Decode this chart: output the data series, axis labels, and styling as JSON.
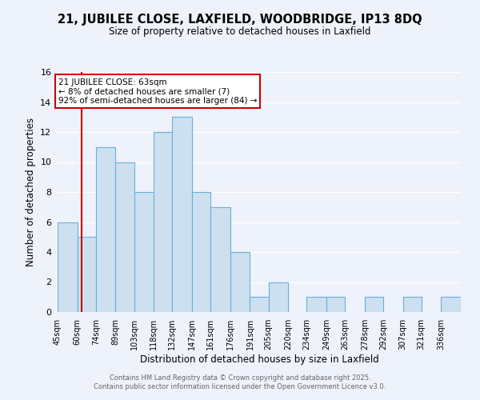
{
  "title": "21, JUBILEE CLOSE, LAXFIELD, WOODBRIDGE, IP13 8DQ",
  "subtitle": "Size of property relative to detached houses in Laxfield",
  "xlabel": "Distribution of detached houses by size in Laxfield",
  "ylabel": "Number of detached properties",
  "bin_labels": [
    "45sqm",
    "60sqm",
    "74sqm",
    "89sqm",
    "103sqm",
    "118sqm",
    "132sqm",
    "147sqm",
    "161sqm",
    "176sqm",
    "191sqm",
    "205sqm",
    "220sqm",
    "234sqm",
    "249sqm",
    "263sqm",
    "278sqm",
    "292sqm",
    "307sqm",
    "321sqm",
    "336sqm"
  ],
  "bin_edges": [
    45,
    60,
    74,
    89,
    103,
    118,
    132,
    147,
    161,
    176,
    191,
    205,
    220,
    234,
    249,
    263,
    278,
    292,
    307,
    321,
    336,
    351
  ],
  "bar_heights": [
    6,
    5,
    11,
    10,
    8,
    12,
    13,
    8,
    7,
    4,
    1,
    2,
    0,
    1,
    1,
    0,
    1,
    0,
    1,
    0,
    1
  ],
  "bar_color": "#cde0f0",
  "bar_edge_color": "#6aaed6",
  "red_line_x": 63,
  "annotation_line1": "21 JUBILEE CLOSE: 63sqm",
  "annotation_line2": "← 8% of detached houses are smaller (7)",
  "annotation_line3": "92% of semi-detached houses are larger (84) →",
  "annotation_box_color": "#ffffff",
  "annotation_box_edge_color": "#cc0000",
  "annotation_text_color": "#000000",
  "red_line_color": "#cc0000",
  "ylim": [
    0,
    16
  ],
  "yticks": [
    0,
    2,
    4,
    6,
    8,
    10,
    12,
    14,
    16
  ],
  "bg_color": "#eef2fb",
  "grid_color": "#ffffff",
  "footer_line1": "Contains HM Land Registry data © Crown copyright and database right 2025.",
  "footer_line2": "Contains public sector information licensed under the Open Government Licence v3.0."
}
